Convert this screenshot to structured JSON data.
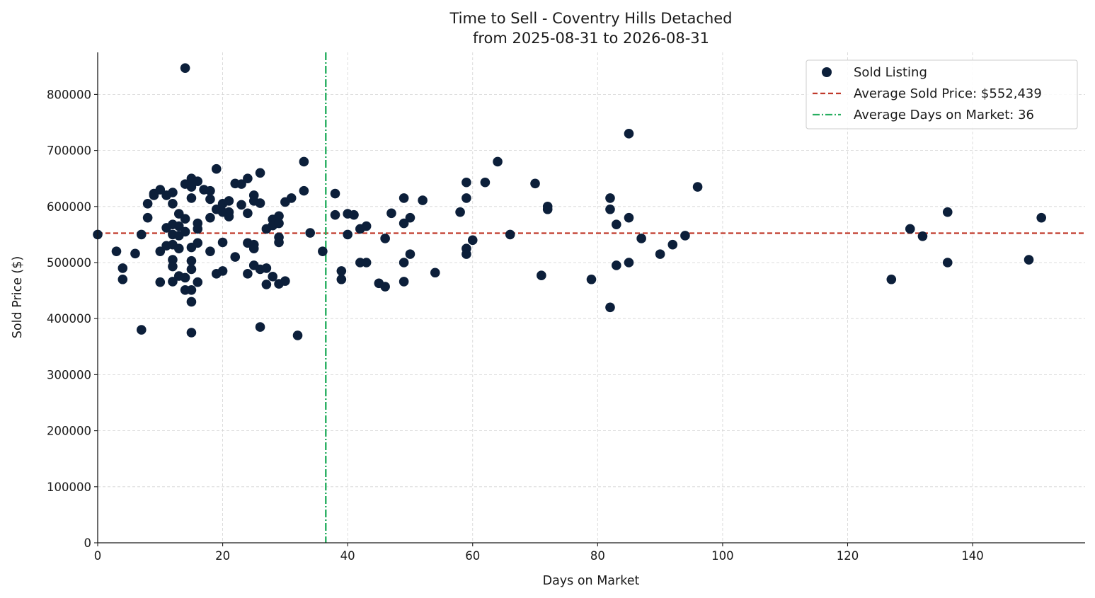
{
  "chart_data": {
    "type": "scatter",
    "title": "Time to Sell - Coventry Hills Detached",
    "subtitle": "from 2025-08-31 to 2026-08-31",
    "xlabel": "Days on Market",
    "ylabel": "Sold Price ($)",
    "xlim": [
      0,
      158
    ],
    "ylim": [
      0,
      875000
    ],
    "x_ticks": [
      0,
      20,
      40,
      60,
      80,
      100,
      120,
      140
    ],
    "y_ticks": [
      0,
      100000,
      200000,
      300000,
      400000,
      500000,
      600000,
      700000,
      800000
    ],
    "grid": true,
    "legend_position": "top-right",
    "colors": {
      "points": "#0c1f3a",
      "avg_price_line": "#c0392b",
      "avg_days_line": "#27ae60"
    },
    "legend": [
      {
        "label": "Sold Listing",
        "kind": "marker"
      },
      {
        "label": "Average Sold Price: $552,439",
        "kind": "dashed"
      },
      {
        "label": "Average Days on Market: 36",
        "kind": "dashdot"
      }
    ],
    "reference_lines": {
      "avg_sold_price": 552439,
      "avg_days_on_market": 36.5
    },
    "series": [
      {
        "name": "Sold Listing",
        "points": [
          [
            0,
            550000
          ],
          [
            3,
            520000
          ],
          [
            4,
            490000
          ],
          [
            4,
            470000
          ],
          [
            6,
            516000
          ],
          [
            7,
            380000
          ],
          [
            7,
            550000
          ],
          [
            8,
            580000
          ],
          [
            8,
            605000
          ],
          [
            9,
            620000
          ],
          [
            9,
            623000
          ],
          [
            10,
            630000
          ],
          [
            10,
            520000
          ],
          [
            10,
            465000
          ],
          [
            11,
            620000
          ],
          [
            11,
            562000
          ],
          [
            11,
            530000
          ],
          [
            12,
            625000
          ],
          [
            12,
            605000
          ],
          [
            12,
            568000
          ],
          [
            12,
            550000
          ],
          [
            12,
            532000
          ],
          [
            12,
            505000
          ],
          [
            12,
            493000
          ],
          [
            12,
            466000
          ],
          [
            13,
            587000
          ],
          [
            13,
            565000
          ],
          [
            13,
            548000
          ],
          [
            13,
            525000
          ],
          [
            13,
            476000
          ],
          [
            14,
            847000
          ],
          [
            14,
            640000
          ],
          [
            14,
            578000
          ],
          [
            14,
            555000
          ],
          [
            14,
            473000
          ],
          [
            14,
            451000
          ],
          [
            15,
            650000
          ],
          [
            15,
            635000
          ],
          [
            15,
            615000
          ],
          [
            15,
            527000
          ],
          [
            15,
            503000
          ],
          [
            15,
            488000
          ],
          [
            15,
            451000
          ],
          [
            15,
            430000
          ],
          [
            15,
            375000
          ],
          [
            16,
            645000
          ],
          [
            16,
            570000
          ],
          [
            16,
            560000
          ],
          [
            16,
            535000
          ],
          [
            16,
            465000
          ],
          [
            17,
            630000
          ],
          [
            18,
            628000
          ],
          [
            18,
            613000
          ],
          [
            18,
            580000
          ],
          [
            18,
            520000
          ],
          [
            19,
            667000
          ],
          [
            19,
            595000
          ],
          [
            19,
            480000
          ],
          [
            20,
            605000
          ],
          [
            20,
            590000
          ],
          [
            20,
            536000
          ],
          [
            20,
            485000
          ],
          [
            21,
            610000
          ],
          [
            21,
            590000
          ],
          [
            21,
            582000
          ],
          [
            22,
            641000
          ],
          [
            22,
            510000
          ],
          [
            23,
            640000
          ],
          [
            23,
            603000
          ],
          [
            24,
            650000
          ],
          [
            24,
            588000
          ],
          [
            24,
            535000
          ],
          [
            24,
            480000
          ],
          [
            25,
            620000
          ],
          [
            25,
            610000
          ],
          [
            25,
            532000
          ],
          [
            25,
            525000
          ],
          [
            25,
            495000
          ],
          [
            26,
            660000
          ],
          [
            26,
            606000
          ],
          [
            26,
            488000
          ],
          [
            26,
            385000
          ],
          [
            27,
            560000
          ],
          [
            27,
            490000
          ],
          [
            27,
            461000
          ],
          [
            28,
            577000
          ],
          [
            28,
            566000
          ],
          [
            28,
            475000
          ],
          [
            29,
            583000
          ],
          [
            29,
            570000
          ],
          [
            29,
            545000
          ],
          [
            29,
            536000
          ],
          [
            29,
            462000
          ],
          [
            30,
            608000
          ],
          [
            30,
            467000
          ],
          [
            31,
            615000
          ],
          [
            32,
            370000
          ],
          [
            33,
            680000
          ],
          [
            33,
            628000
          ],
          [
            34,
            553000
          ],
          [
            36,
            520000
          ],
          [
            38,
            623000
          ],
          [
            38,
            585000
          ],
          [
            39,
            485000
          ],
          [
            39,
            470000
          ],
          [
            40,
            587000
          ],
          [
            40,
            550000
          ],
          [
            41,
            585000
          ],
          [
            42,
            560000
          ],
          [
            42,
            500000
          ],
          [
            43,
            565000
          ],
          [
            43,
            500000
          ],
          [
            45,
            463000
          ],
          [
            46,
            457000
          ],
          [
            46,
            543000
          ],
          [
            47,
            588000
          ],
          [
            49,
            615000
          ],
          [
            49,
            570000
          ],
          [
            49,
            500000
          ],
          [
            49,
            466000
          ],
          [
            50,
            580000
          ],
          [
            50,
            515000
          ],
          [
            52,
            611000
          ],
          [
            54,
            482000
          ],
          [
            58,
            590000
          ],
          [
            59,
            643000
          ],
          [
            59,
            615000
          ],
          [
            59,
            525000
          ],
          [
            59,
            515000
          ],
          [
            60,
            540000
          ],
          [
            62,
            643000
          ],
          [
            64,
            680000
          ],
          [
            66,
            550000
          ],
          [
            70,
            641000
          ],
          [
            71,
            477000
          ],
          [
            72,
            600000
          ],
          [
            72,
            595000
          ],
          [
            79,
            470000
          ],
          [
            82,
            615000
          ],
          [
            82,
            595000
          ],
          [
            82,
            420000
          ],
          [
            83,
            568000
          ],
          [
            83,
            495000
          ],
          [
            85,
            730000
          ],
          [
            85,
            580000
          ],
          [
            85,
            500000
          ],
          [
            87,
            543000
          ],
          [
            90,
            515000
          ],
          [
            92,
            532000
          ],
          [
            94,
            548000
          ],
          [
            96,
            635000
          ],
          [
            127,
            470000
          ],
          [
            130,
            560000
          ],
          [
            132,
            547000
          ],
          [
            136,
            590000
          ],
          [
            136,
            500000
          ],
          [
            149,
            505000
          ],
          [
            151,
            580000
          ]
        ]
      }
    ]
  }
}
